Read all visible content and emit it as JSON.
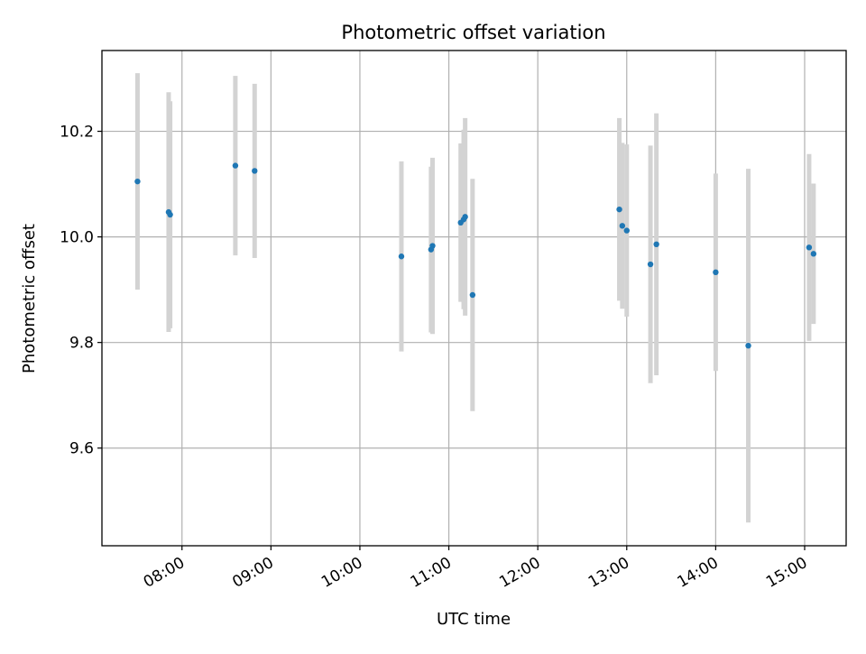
{
  "chart_data": {
    "type": "scatter",
    "title": "Photometric offset variation",
    "xlabel": "UTC time",
    "ylabel": "Photometric offset",
    "x_axis": {
      "kind": "time",
      "range": [
        "07:06",
        "15:28"
      ],
      "ticks": [
        "08:00",
        "09:00",
        "10:00",
        "11:00",
        "12:00",
        "13:00",
        "14:00",
        "15:00"
      ],
      "tick_label_rotation_deg": 30
    },
    "y_axis": {
      "range": [
        9.415,
        10.353
      ],
      "ticks": [
        9.6,
        9.8,
        10.0,
        10.2
      ],
      "tick_labels": [
        "9.6",
        "9.8",
        "10.0",
        "10.2"
      ]
    },
    "grid": true,
    "legend": "none",
    "colors": {
      "points": "#1f77b4",
      "error_bars": "#d3d3d3",
      "grid": "#b0b0b0"
    },
    "series": [
      {
        "marker": "point",
        "error_bars": "vertical",
        "points": [
          {
            "x": "07:30",
            "y": 10.105,
            "err": 0.205
          },
          {
            "x": "07:51",
            "y": 10.047,
            "err": 0.227
          },
          {
            "x": "07:52",
            "y": 10.042,
            "err": 0.215
          },
          {
            "x": "08:36",
            "y": 10.135,
            "err": 0.17
          },
          {
            "x": "08:49",
            "y": 10.125,
            "err": 0.165
          },
          {
            "x": "10:28",
            "y": 9.963,
            "err": 0.18
          },
          {
            "x": "10:48",
            "y": 9.976,
            "err": 0.157
          },
          {
            "x": "10:49",
            "y": 9.983,
            "err": 0.167
          },
          {
            "x": "11:08",
            "y": 10.027,
            "err": 0.15
          },
          {
            "x": "11:10",
            "y": 10.033,
            "err": 0.17
          },
          {
            "x": "11:11",
            "y": 10.038,
            "err": 0.187
          },
          {
            "x": "11:16",
            "y": 9.89,
            "err": 0.22
          },
          {
            "x": "12:55",
            "y": 10.052,
            "err": 0.173
          },
          {
            "x": "12:57",
            "y": 10.021,
            "err": 0.157
          },
          {
            "x": "13:00",
            "y": 10.012,
            "err": 0.163
          },
          {
            "x": "13:16",
            "y": 9.948,
            "err": 0.225
          },
          {
            "x": "13:20",
            "y": 9.986,
            "err": 0.248
          },
          {
            "x": "14:00",
            "y": 9.933,
            "err": 0.187
          },
          {
            "x": "14:22",
            "y": 9.794,
            "err": 0.335
          },
          {
            "x": "15:03",
            "y": 9.98,
            "err": 0.177
          },
          {
            "x": "15:06",
            "y": 9.968,
            "err": 0.133
          }
        ]
      }
    ]
  }
}
